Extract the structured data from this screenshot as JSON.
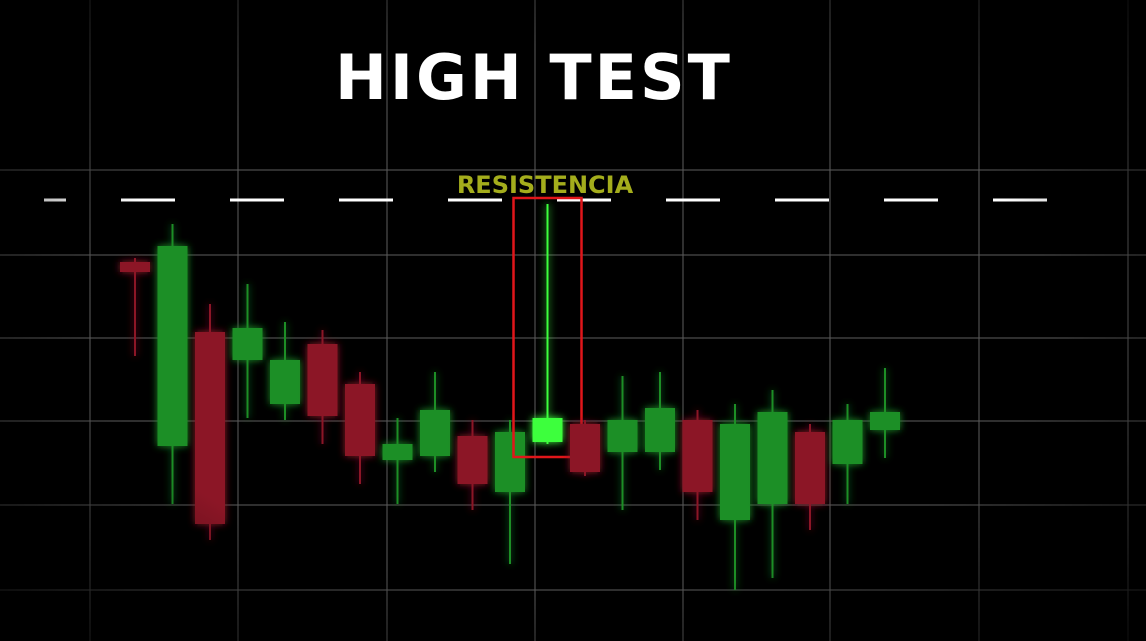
{
  "chart_data": {
    "type": "candlestick",
    "title": "HIGH TEST",
    "ylim": [
      -10,
      150
    ],
    "up_color": "#1f8f26",
    "down_color": "#8c1525",
    "series": {
      "open": [
        84.5,
        38.5,
        67,
        60,
        49,
        64,
        54,
        35,
        36,
        41,
        27,
        39.5,
        44,
        37,
        37,
        45,
        20,
        24,
        42,
        34,
        42.5
      ],
      "high": [
        85.5,
        94,
        74,
        79,
        69.5,
        67.5,
        57,
        45.5,
        57,
        45,
        45,
        99,
        45,
        56,
        57,
        47.5,
        49,
        52.5,
        44,
        49,
        58
      ],
      "low": [
        61,
        24,
        15,
        45.5,
        45,
        39,
        29,
        24,
        32,
        22.5,
        9,
        39,
        31,
        22.5,
        32.5,
        20,
        2.5,
        5.5,
        17.5,
        24,
        35.5
      ],
      "close": [
        82,
        88.5,
        19,
        68,
        60,
        46,
        36,
        39,
        47.5,
        29,
        42,
        45.5,
        32,
        45,
        48,
        27,
        44,
        47,
        24,
        45,
        47
      ]
    },
    "resistance": {
      "value": 100,
      "label": "RESISTENCIA",
      "color": "#a4ad1c",
      "line_color": "#ffffff"
    },
    "highlight": {
      "index": 11,
      "color": "#3cff3c",
      "box_color": "#e0161a"
    }
  }
}
